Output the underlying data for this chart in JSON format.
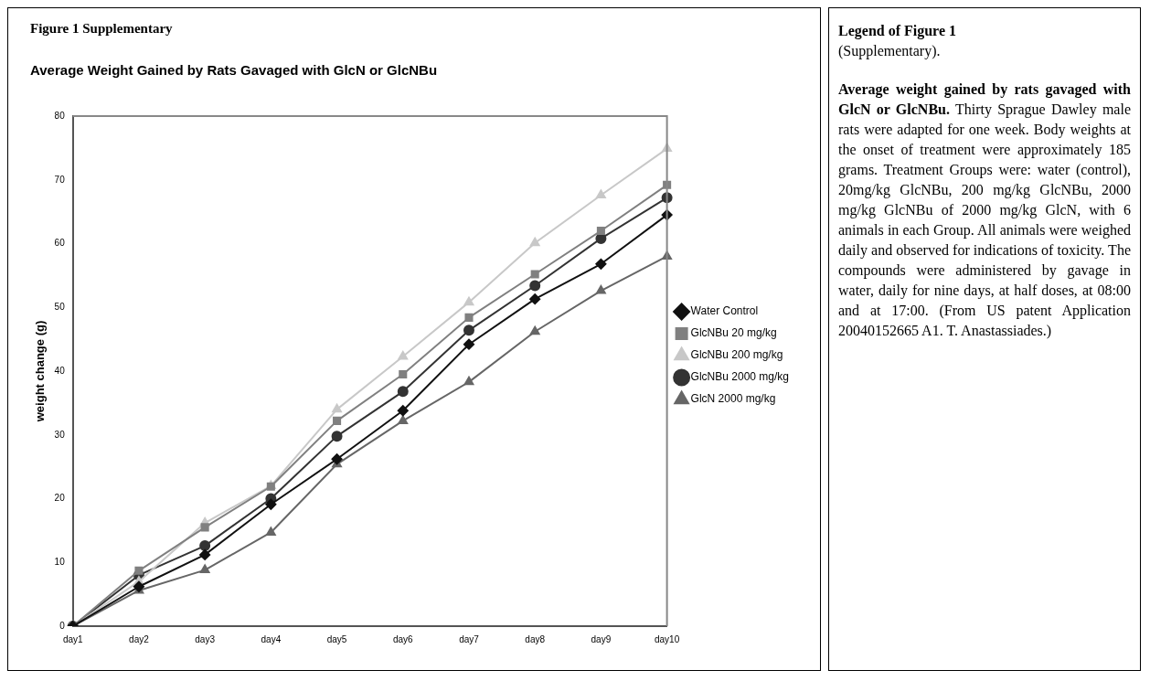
{
  "chart_data": {
    "type": "line",
    "title": "Average Weight Gained by Rats Gavaged with GlcN or GlcNBu",
    "ylabel": "weight change (g)",
    "categories": [
      "day1",
      "day2",
      "day3",
      "day4",
      "day5",
      "day6",
      "day7",
      "day8",
      "day9",
      "day10"
    ],
    "ylim": [
      0,
      80
    ],
    "yticks": [
      0,
      10,
      20,
      30,
      40,
      50,
      60,
      70,
      80
    ],
    "grid": false,
    "legend": "right",
    "line_style": "solid",
    "series": [
      {
        "name": "Water Control",
        "color": "#111111",
        "marker": "diamond",
        "values": [
          0,
          6.2,
          11.2,
          19.1,
          26.2,
          33.8,
          44.2,
          51.3,
          56.8,
          64.5
        ]
      },
      {
        "name": "GlcNBu 20 mg/kg",
        "color": "#808080",
        "marker": "square",
        "values": [
          0,
          8.7,
          15.5,
          21.9,
          32.2,
          39.5,
          48.4,
          55.2,
          62.0,
          69.2
        ]
      },
      {
        "name": "GlcNBu 200 mg/kg",
        "color": "#c8c8c8",
        "marker": "triangle",
        "values": [
          0,
          7.0,
          16.2,
          22.0,
          34.0,
          42.3,
          50.8,
          60.1,
          67.6,
          74.9
        ]
      },
      {
        "name": "GlcNBu 2000 mg/kg",
        "color": "#333333",
        "marker": "circle",
        "values": [
          0,
          8.0,
          12.6,
          20.0,
          29.8,
          36.8,
          46.4,
          53.4,
          60.8,
          67.2
        ]
      },
      {
        "name": "GlcN 2000 mg/kg",
        "color": "#666666",
        "marker": "triangle",
        "values": [
          0,
          5.6,
          8.8,
          14.7,
          25.4,
          32.2,
          38.3,
          46.2,
          52.6,
          58.0
        ]
      }
    ],
    "annotations": [
      "Figure 1 Supplementary",
      "Legend of Figure 1",
      "(Supplementary).",
      "Average weight gained by rats gavaged with GlcN or GlcNBu.",
      "Thirty Sprague Dawley male rats were adapted for one week. Body weights at the onset of treatment were approximately 185 grams. Treatment Groups were: water (control), 20mg/kg GlcNBu, 200 mg/kg GlcNBu, 2000 mg/kg GlcNBu of 2000 mg/kg GlcN, with 6 animals in each Group. All animals were weighed daily and observed for indications of toxicity. The compounds were administered by gavage in water, daily for nine days, at half doses, at 08:00 and at 17:00. (From US patent Application 20040152665 A1. T. Anastassiades.)"
    ]
  }
}
